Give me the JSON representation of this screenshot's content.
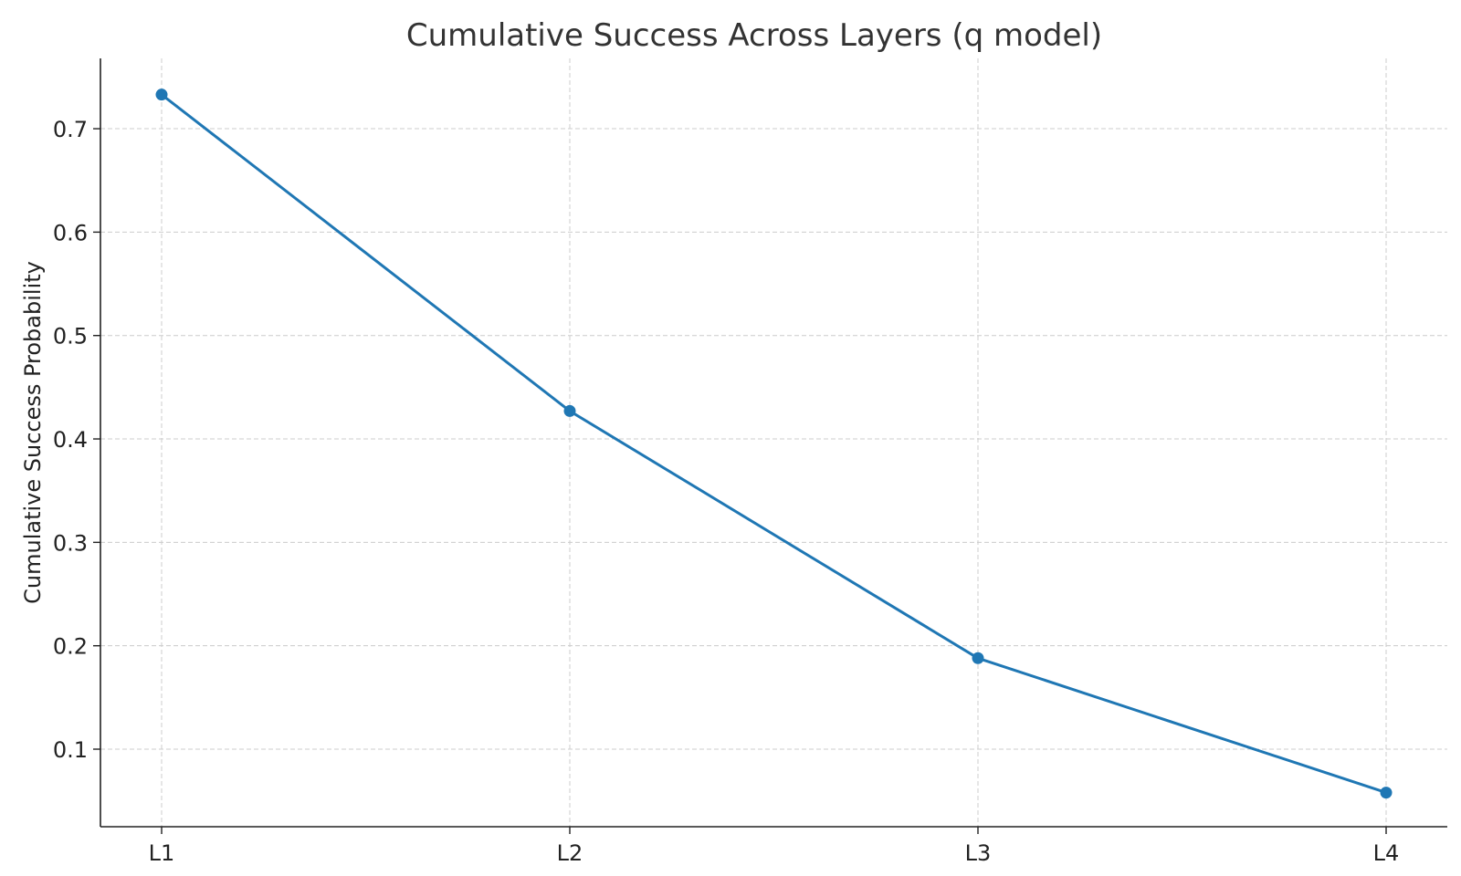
{
  "chart_data": {
    "type": "line",
    "title": "Cumulative Success Across Layers (q model)",
    "xlabel": "",
    "ylabel": "Cumulative Success Probability",
    "categories": [
      "L1",
      "L2",
      "L3",
      "L4"
    ],
    "series": [
      {
        "values": [
          0.733,
          0.427,
          0.188,
          0.058
        ]
      }
    ],
    "ylim": [
      0.025,
      0.768
    ],
    "yticks": [
      0.1,
      0.2,
      0.3,
      0.4,
      0.5,
      0.6,
      0.7
    ],
    "ytick_labels": [
      "0.1",
      "0.2",
      "0.3",
      "0.4",
      "0.5",
      "0.6",
      "0.7"
    ],
    "grid": true,
    "line_color": "#1f77b4",
    "marker": "circle"
  }
}
